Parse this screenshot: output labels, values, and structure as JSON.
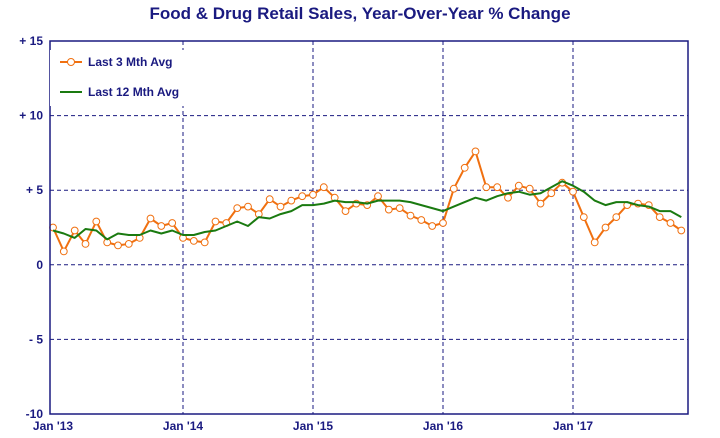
{
  "chart_data": {
    "type": "line",
    "title": "Food & Drug Retail Sales, Year-Over-Year % Change",
    "xlabel": "",
    "ylabel": "",
    "x_start": "Jan '13",
    "x_ticks": [
      "Jan '13",
      "Jan '14",
      "Jan '15",
      "Jan '16",
      "Jan '17"
    ],
    "y_ticks": [
      "+ 15",
      "+ 10",
      "+ 5",
      "0",
      "- 5",
      "-10"
    ],
    "ylim": [
      -10,
      15
    ],
    "grid": "dashed",
    "legend_position": "top-left",
    "colors": {
      "last3": "#f07010",
      "last12": "#1a7a10",
      "frame": "#1a1a80",
      "grid": "#1a1a80"
    },
    "series": [
      {
        "name": "Last 3 Mth Avg",
        "marker": "circle",
        "values": [
          2.5,
          0.9,
          2.3,
          1.4,
          2.9,
          1.5,
          1.3,
          1.4,
          1.8,
          3.1,
          2.6,
          2.8,
          1.8,
          1.6,
          1.5,
          2.9,
          2.8,
          3.8,
          3.9,
          3.4,
          4.4,
          3.9,
          4.3,
          4.6,
          4.7,
          5.2,
          4.5,
          3.6,
          4.1,
          4.0,
          4.6,
          3.7,
          3.8,
          3.3,
          3.0,
          2.6,
          2.8,
          5.1,
          6.5,
          7.6,
          5.2,
          5.2,
          4.5,
          5.3,
          5.1,
          4.1,
          4.8,
          5.5,
          4.9,
          3.2,
          1.5,
          2.5,
          3.2,
          4.0,
          4.1,
          4.0,
          3.2,
          2.8,
          2.3
        ]
      },
      {
        "name": "Last 12 Mth Avg",
        "marker": "none",
        "values": [
          2.3,
          2.1,
          1.8,
          2.4,
          2.3,
          1.7,
          2.1,
          2.0,
          2.0,
          2.3,
          2.1,
          2.3,
          2.0,
          2.0,
          2.2,
          2.3,
          2.6,
          2.9,
          2.6,
          3.2,
          3.1,
          3.4,
          3.6,
          4.0,
          4.0,
          4.1,
          4.3,
          4.2,
          4.2,
          4.1,
          4.3,
          4.3,
          4.3,
          4.2,
          4.0,
          3.8,
          3.6,
          3.9,
          4.2,
          4.5,
          4.3,
          4.6,
          4.8,
          4.9,
          4.7,
          4.8,
          5.2,
          5.6,
          5.3,
          4.9,
          4.3,
          4.0,
          4.2,
          4.2,
          4.0,
          3.9,
          3.6,
          3.6,
          3.2
        ]
      }
    ]
  }
}
